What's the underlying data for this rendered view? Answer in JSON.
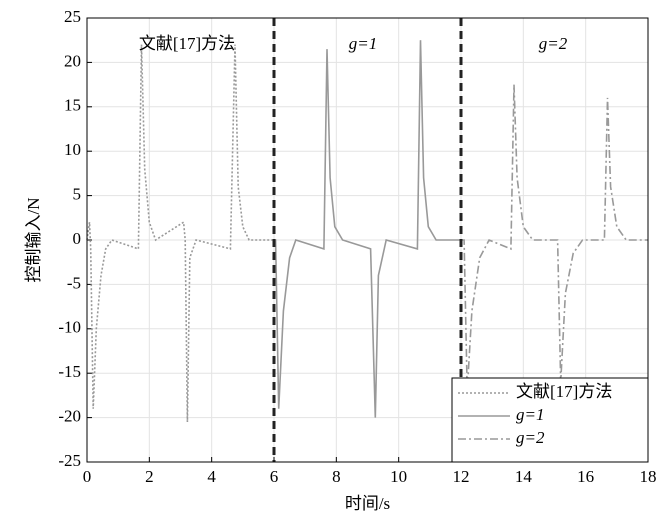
{
  "chart_data": {
    "type": "line",
    "xlabel": "时间/s",
    "ylabel": "控制输入/N",
    "xlim": [
      0,
      18
    ],
    "xticks": [
      0,
      2,
      4,
      6,
      8,
      10,
      12,
      14,
      16,
      18
    ],
    "ylim": [
      -25,
      25
    ],
    "yticks": [
      -25,
      -20,
      -15,
      -10,
      -5,
      0,
      5,
      10,
      15,
      20,
      25
    ],
    "grid": true,
    "legend": "lower right",
    "vlines": [
      6,
      12
    ],
    "annotations": [
      "文献[17]方法",
      "g=1",
      "g=2"
    ],
    "series": [
      {
        "name": "文献[17]方法",
        "color": "#999999",
        "style": "dotted",
        "x": [
          0,
          0.08,
          0.12,
          0.2,
          0.3,
          0.45,
          0.6,
          0.8,
          1.65,
          1.75,
          1.85,
          2.0,
          2.2,
          3.1,
          3.15,
          3.22,
          3.3,
          3.5,
          4.6,
          4.75,
          4.85,
          5.0,
          5.2,
          6
        ],
        "values": [
          0,
          2,
          -1,
          -19,
          -10,
          -4,
          -1,
          0,
          -1,
          22,
          8,
          2,
          0,
          2,
          0,
          -20.5,
          -2,
          0,
          -1,
          22,
          6,
          1.5,
          0,
          0
        ]
      },
      {
        "name": "g=1",
        "color": "#999999",
        "style": "solid",
        "x": [
          6,
          6.05,
          6.15,
          6.3,
          6.5,
          6.7,
          7.6,
          7.7,
          7.8,
          7.95,
          8.2,
          9.1,
          9.25,
          9.35,
          9.6,
          10.6,
          10.7,
          10.8,
          10.95,
          11.2,
          12
        ],
        "values": [
          0,
          0,
          -19,
          -8,
          -2,
          0,
          -1,
          21.5,
          7,
          1.5,
          0,
          -1,
          -20,
          -4,
          0,
          -1,
          22.5,
          7,
          1.5,
          0,
          0
        ]
      },
      {
        "name": "g=2",
        "color": "#999999",
        "style": "dashdot",
        "x": [
          12,
          12.1,
          12.2,
          12.35,
          12.6,
          12.9,
          13.6,
          13.7,
          13.8,
          14.0,
          14.3,
          15.1,
          15.2,
          15.35,
          15.6,
          15.9,
          16.6,
          16.7,
          16.8,
          17.0,
          17.3,
          18
        ],
        "values": [
          0,
          0,
          -17,
          -8,
          -2,
          0,
          -1,
          17.5,
          7,
          1.5,
          0,
          0,
          -16,
          -6,
          -1.5,
          0,
          0,
          16,
          6,
          1.5,
          0,
          0
        ]
      }
    ]
  }
}
